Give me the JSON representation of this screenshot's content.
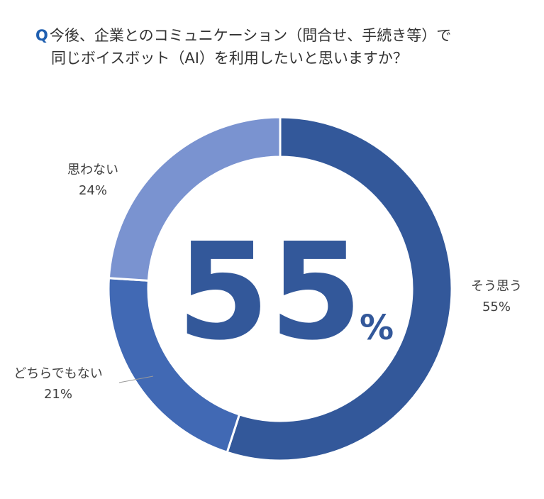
{
  "title": {
    "q_mark": "Q",
    "line1": "今後、企業とのコミュニケーション（問合せ、手続き等）で",
    "line2": "同じボイスボット（AI）を利用したいと思いますか？"
  },
  "center": {
    "value": "55",
    "unit": "%"
  },
  "colors": {
    "slice_yes": "#33589a",
    "slice_neutral": "#4169b4",
    "slice_no": "#7a93d0",
    "leader": "#999999"
  },
  "chart_data": {
    "type": "pie",
    "donut": true,
    "categories": [
      "そう思う",
      "どちらでもない",
      "思わない"
    ],
    "values": [
      55,
      21,
      24
    ],
    "value_labels": [
      "55%",
      "21%",
      "24%"
    ]
  }
}
